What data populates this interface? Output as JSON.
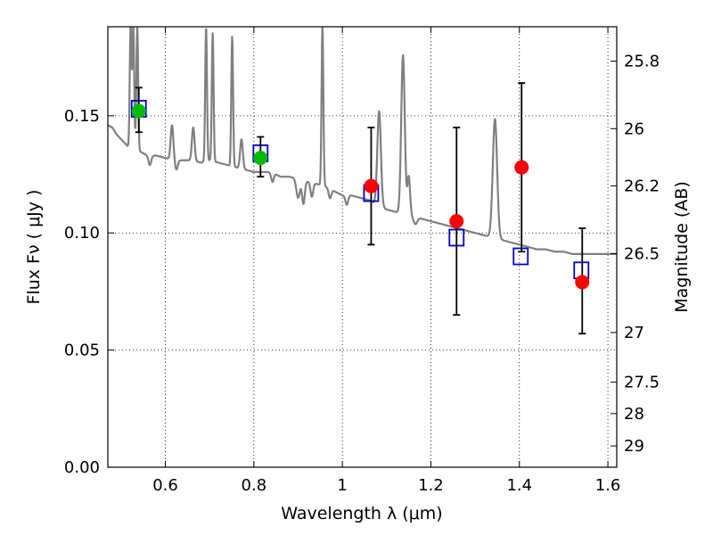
{
  "chart_data": {
    "type": "scatter",
    "xlabel": "Wavelength  λ (μm)",
    "ylabel": "Flux  Fν ( μJy )",
    "ylabel_right": "Magnitude (AB)",
    "xlim": [
      0.47,
      1.62
    ],
    "ylim": [
      0.0,
      0.188
    ],
    "grid": true,
    "xticks": [
      0.6,
      0.8,
      1.0,
      1.2,
      1.4,
      1.6
    ],
    "xtick_labels": [
      "0.6",
      "0.8",
      "1",
      "1.2",
      "1.4",
      "1.6"
    ],
    "yticks": [
      0.0,
      0.05,
      0.1,
      0.15
    ],
    "ytick_labels": [
      "0.00",
      "0.05",
      "0.10",
      "0.15"
    ],
    "right_ticks": [
      {
        "label": "25.8",
        "flux": 0.1733
      },
      {
        "label": "26",
        "flux": 0.1445
      },
      {
        "label": "26.2",
        "flux": 0.1201
      },
      {
        "label": "26.5",
        "flux": 0.0912
      },
      {
        "label": "27",
        "flux": 0.0575
      },
      {
        "label": "27.5",
        "flux": 0.0363
      },
      {
        "label": "28",
        "flux": 0.0229
      },
      {
        "label": "29",
        "flux": 0.0091
      }
    ],
    "colors": {
      "spectrum": "#808080",
      "model_box": "#0000cc",
      "green_point": "#00bb00",
      "red_point": "#ff0000",
      "errorbar": "#000000",
      "grid": "#000000"
    },
    "spectrum": {
      "continuum": [
        [
          0.47,
          0.146
        ],
        [
          0.48,
          0.145
        ],
        [
          0.49,
          0.142
        ],
        [
          0.5,
          0.14
        ],
        [
          0.51,
          0.138
        ],
        [
          0.52,
          0.136
        ],
        [
          0.53,
          0.136
        ],
        [
          0.54,
          0.135
        ],
        [
          0.55,
          0.134
        ],
        [
          0.56,
          0.133
        ],
        [
          0.58,
          0.133
        ],
        [
          0.6,
          0.132
        ],
        [
          0.62,
          0.131
        ],
        [
          0.64,
          0.131
        ],
        [
          0.66,
          0.131
        ],
        [
          0.68,
          0.13
        ],
        [
          0.7,
          0.131
        ],
        [
          0.72,
          0.13
        ],
        [
          0.74,
          0.129
        ],
        [
          0.76,
          0.128
        ],
        [
          0.78,
          0.127
        ],
        [
          0.8,
          0.126
        ],
        [
          0.82,
          0.126
        ],
        [
          0.84,
          0.126
        ],
        [
          0.86,
          0.124
        ],
        [
          0.88,
          0.124
        ],
        [
          0.9,
          0.123
        ],
        [
          0.92,
          0.122
        ],
        [
          0.94,
          0.121
        ],
        [
          0.96,
          0.12
        ],
        [
          0.98,
          0.118
        ],
        [
          1.0,
          0.116
        ],
        [
          1.02,
          0.116
        ],
        [
          1.04,
          0.115
        ],
        [
          1.06,
          0.114
        ],
        [
          1.08,
          0.112
        ],
        [
          1.1,
          0.11
        ],
        [
          1.12,
          0.109
        ],
        [
          1.14,
          0.108
        ],
        [
          1.16,
          0.107
        ],
        [
          1.18,
          0.106
        ],
        [
          1.2,
          0.105
        ],
        [
          1.22,
          0.104
        ],
        [
          1.24,
          0.103
        ],
        [
          1.26,
          0.102
        ],
        [
          1.28,
          0.101
        ],
        [
          1.3,
          0.1
        ],
        [
          1.32,
          0.099
        ],
        [
          1.34,
          0.098
        ],
        [
          1.36,
          0.097
        ],
        [
          1.38,
          0.096
        ],
        [
          1.4,
          0.095
        ],
        [
          1.42,
          0.094
        ],
        [
          1.44,
          0.093
        ],
        [
          1.46,
          0.093
        ],
        [
          1.48,
          0.092
        ],
        [
          1.5,
          0.092
        ],
        [
          1.52,
          0.091
        ],
        [
          1.54,
          0.091
        ],
        [
          1.56,
          0.091
        ],
        [
          1.58,
          0.091
        ],
        [
          1.6,
          0.091
        ],
        [
          1.62,
          0.091
        ]
      ],
      "lines": [
        {
          "center": 0.5215,
          "peak": 0.188,
          "width": 0.002
        },
        {
          "center": 0.5275,
          "peak": 0.188,
          "width": 0.002
        },
        {
          "center": 0.5365,
          "peak": 0.188,
          "width": 0.002
        },
        {
          "center": 0.615,
          "peak": 0.146,
          "width": 0.003
        },
        {
          "center": 0.663,
          "peak": 0.145,
          "width": 0.003
        },
        {
          "center": 0.692,
          "peak": 0.188,
          "width": 0.002
        },
        {
          "center": 0.707,
          "peak": 0.188,
          "width": 0.002
        },
        {
          "center": 0.751,
          "peak": 0.184,
          "width": 0.002
        },
        {
          "center": 0.772,
          "peak": 0.14,
          "width": 0.003
        },
        {
          "center": 0.955,
          "peak": 0.188,
          "width": 0.002
        },
        {
          "center": 1.083,
          "peak": 0.152,
          "width": 0.004
        },
        {
          "center": 1.137,
          "peak": 0.176,
          "width": 0.004
        },
        {
          "center": 1.15,
          "peak": 0.124,
          "width": 0.003
        },
        {
          "center": 1.345,
          "peak": 0.15,
          "width": 0.005
        }
      ],
      "dips": [
        {
          "center": 0.565,
          "depth": 0.004,
          "width": 0.003
        },
        {
          "center": 0.625,
          "depth": 0.004,
          "width": 0.003
        },
        {
          "center": 0.708,
          "depth": 0.003,
          "width": 0.002
        },
        {
          "center": 0.842,
          "depth": 0.004,
          "width": 0.003
        },
        {
          "center": 0.9,
          "depth": 0.008,
          "width": 0.004
        },
        {
          "center": 0.912,
          "depth": 0.01,
          "width": 0.003
        },
        {
          "center": 0.931,
          "depth": 0.006,
          "width": 0.003
        },
        {
          "center": 0.972,
          "depth": 0.004,
          "width": 0.003
        },
        {
          "center": 1.01,
          "depth": 0.004,
          "width": 0.003
        },
        {
          "center": 1.165,
          "depth": 0.003,
          "width": 0.004
        },
        {
          "center": 1.35,
          "depth": 0.003,
          "width": 0.004
        }
      ]
    },
    "model_boxes": [
      {
        "x": 0.54,
        "y": 0.153
      },
      {
        "x": 0.815,
        "y": 0.134
      },
      {
        "x": 1.065,
        "y": 0.117
      },
      {
        "x": 1.258,
        "y": 0.098
      },
      {
        "x": 1.403,
        "y": 0.09
      },
      {
        "x": 1.54,
        "y": 0.084
      }
    ],
    "points": [
      {
        "x": 0.54,
        "y": 0.152,
        "err_low": 0.143,
        "err_high": 0.162,
        "color": "green"
      },
      {
        "x": 0.815,
        "y": 0.132,
        "err_low": 0.124,
        "err_high": 0.141,
        "color": "green"
      },
      {
        "x": 1.065,
        "y": 0.12,
        "err_low": 0.095,
        "err_high": 0.145,
        "color": "red"
      },
      {
        "x": 1.258,
        "y": 0.105,
        "err_low": 0.065,
        "err_high": 0.145,
        "color": "red"
      },
      {
        "x": 1.405,
        "y": 0.128,
        "err_low": 0.092,
        "err_high": 0.164,
        "color": "red"
      },
      {
        "x": 1.542,
        "y": 0.079,
        "err_low": 0.057,
        "err_high": 0.102,
        "color": "red"
      }
    ]
  }
}
